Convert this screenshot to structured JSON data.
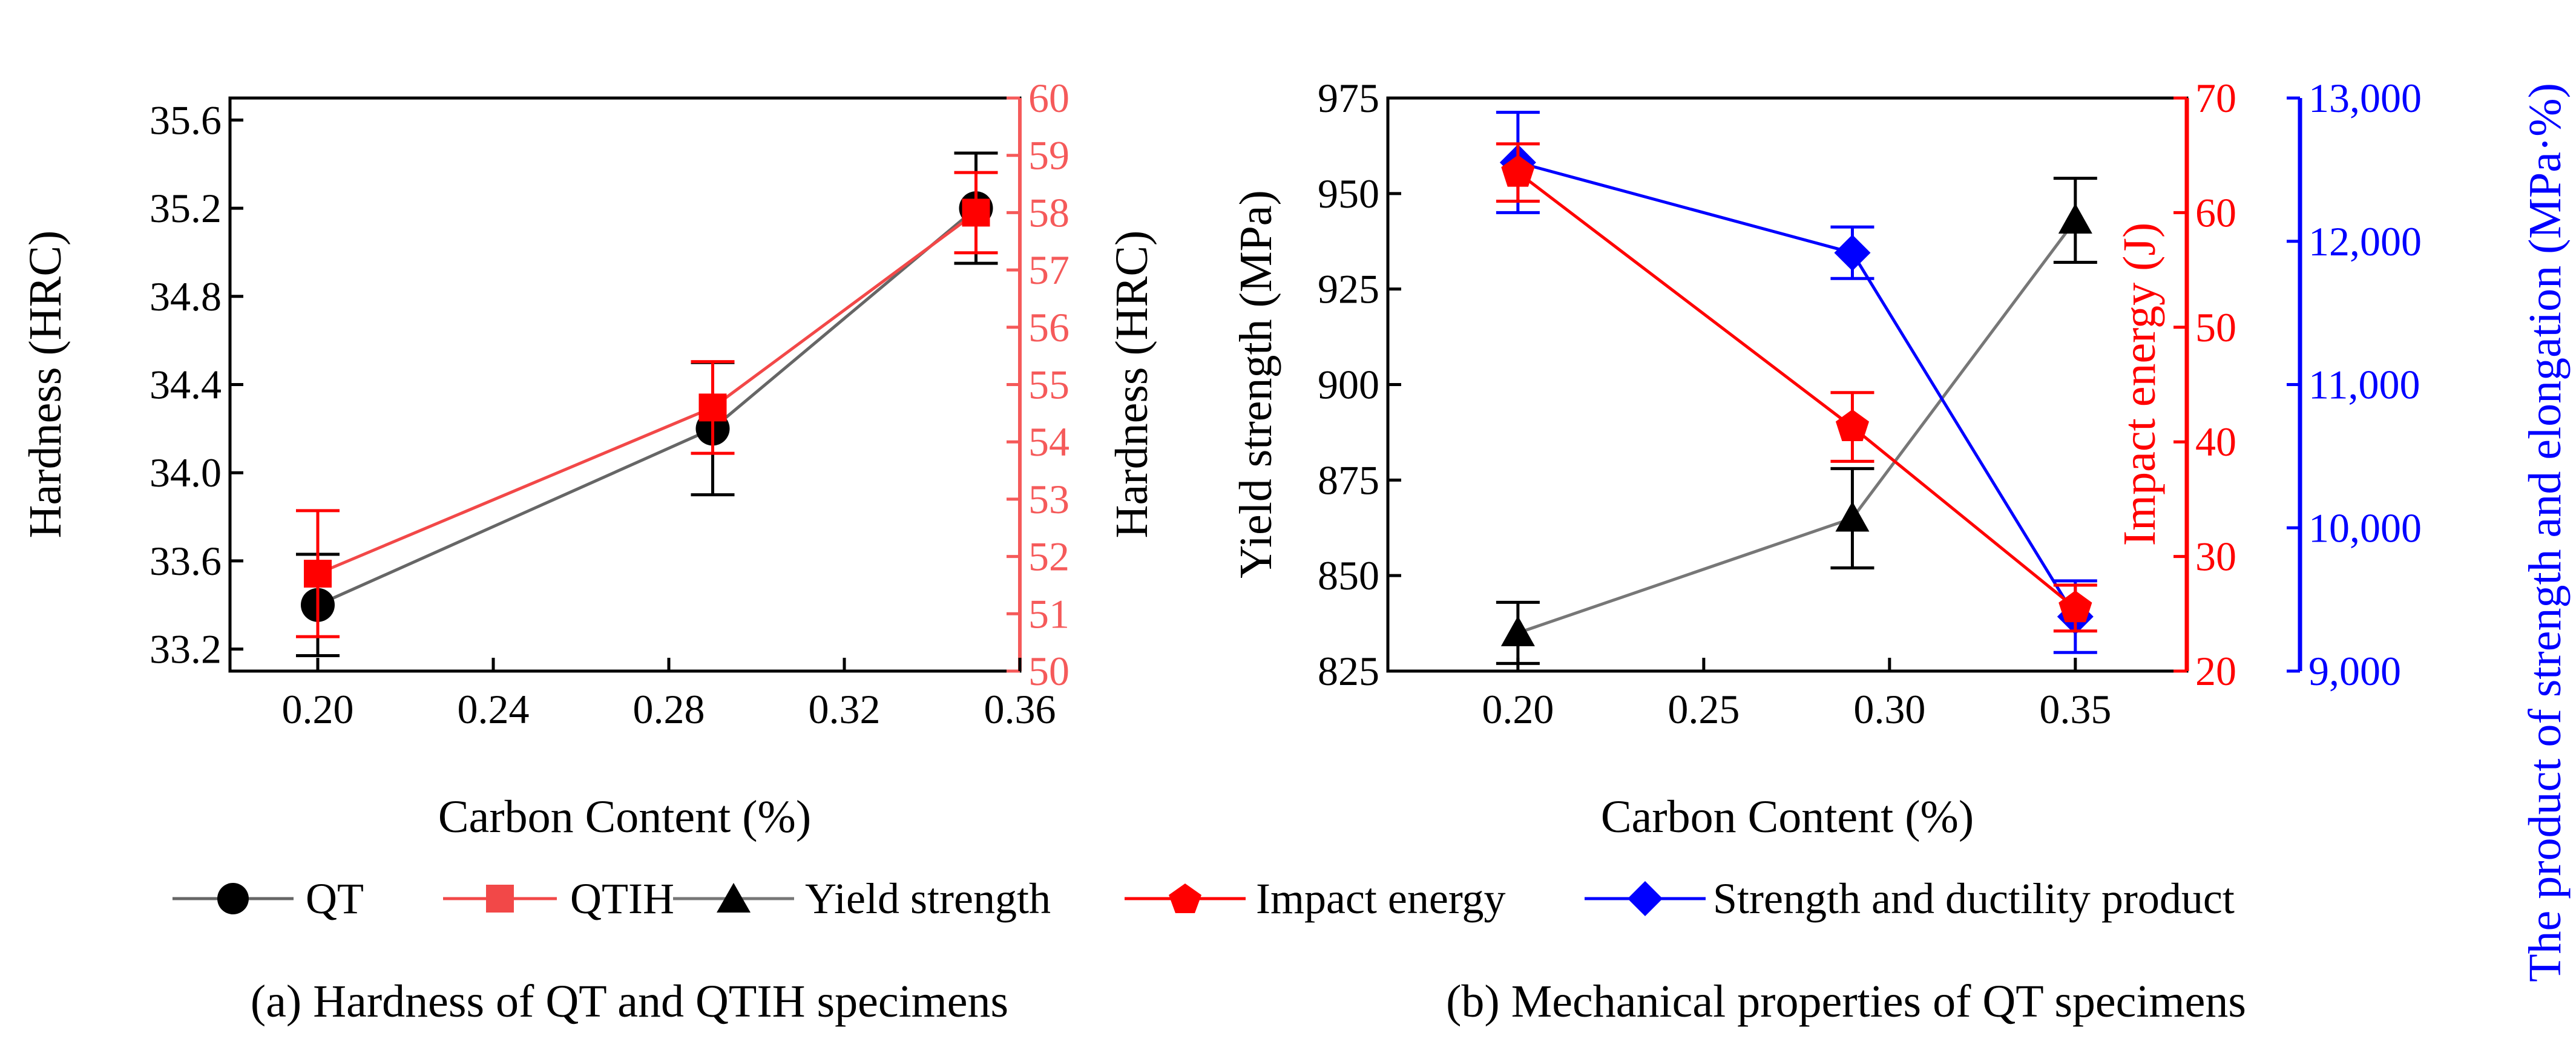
{
  "colors": {
    "black": "#000000",
    "red": "#ff0000",
    "blue": "#0000ff",
    "qt_line": "#666666",
    "qtih_line": "#f24848",
    "qtih_axis": "#f55a5a",
    "yield_line": "#777777"
  },
  "legend": {
    "qt": "QT",
    "qtih": "QTIH",
    "yield": "Yield strength",
    "impact": "Impact energy",
    "sdp": "Strength and ductility product"
  },
  "chart_data": [
    {
      "id": "hardness",
      "type": "line",
      "caption": "(a) Hardness of QT and QTIH specimens",
      "xlabel": "Carbon Content (%)",
      "xlim": [
        0.18,
        0.36
      ],
      "xticks": [
        "0.20",
        "0.24",
        "0.28",
        "0.32",
        "0.36"
      ],
      "ylabel_left": "Hardness (HRC)",
      "ylim_left": [
        33.1,
        35.7
      ],
      "yticks_left": [
        "33.2",
        "33.6",
        "34.0",
        "34.4",
        "34.8",
        "35.2",
        "35.6"
      ],
      "ylabel_right": "Hardness (HRC)",
      "ylim_right": [
        50,
        60
      ],
      "yticks_right": [
        "50",
        "51",
        "52",
        "53",
        "54",
        "55",
        "56",
        "57",
        "58",
        "59",
        "60"
      ],
      "series": [
        {
          "name": "QT",
          "axis": "left",
          "marker": "circle",
          "color": "black",
          "line": "qt_line",
          "x": [
            0.2,
            0.29,
            0.35
          ],
          "y": [
            33.4,
            34.2,
            35.2
          ],
          "err": [
            0.23,
            0.3,
            0.25
          ]
        },
        {
          "name": "QTIH",
          "axis": "right",
          "marker": "square",
          "color": "red",
          "line": "qtih_line",
          "x": [
            0.2,
            0.29,
            0.35
          ],
          "y": [
            51.7,
            54.6,
            58.0
          ],
          "err": [
            1.1,
            0.8,
            0.7
          ]
        }
      ]
    },
    {
      "id": "mechanical",
      "type": "line",
      "caption": "(b) Mechanical properties of QT specimens",
      "xlabel": "Carbon Content (%)",
      "xlim": [
        0.165,
        0.38
      ],
      "xticks": [
        "0.20",
        "0.25",
        "0.30",
        "0.35"
      ],
      "ylabel_left": "Yield strength (MPa)",
      "ylim_left": [
        825,
        975
      ],
      "yticks_left": [
        "825",
        "850",
        "875",
        "900",
        "925",
        "950",
        "975"
      ],
      "ylabel_right1": "Impact energy (J)",
      "ylim_right1": [
        20,
        70
      ],
      "yticks_right1": [
        "20",
        "30",
        "40",
        "50",
        "60",
        "70"
      ],
      "ylabel_right2": "The product of strength and elongation  (MPa·%)",
      "ylim_right2": [
        9000,
        13000
      ],
      "yticks_right2": [
        "9,000",
        "10,000",
        "11,000",
        "12,000",
        "13,000"
      ],
      "series": [
        {
          "name": "Yield strength",
          "axis": "left",
          "marker": "triangle",
          "color": "black",
          "line": "yield_line",
          "x": [
            0.2,
            0.29,
            0.35
          ],
          "y": [
            835,
            865,
            943
          ],
          "err": [
            8,
            13,
            11
          ]
        },
        {
          "name": "Impact energy",
          "axis": "right1",
          "marker": "pentagon",
          "color": "red",
          "line": "red",
          "x": [
            0.2,
            0.29,
            0.35
          ],
          "y": [
            63.5,
            41.3,
            25.5
          ],
          "err": [
            2.5,
            3.0,
            2.0
          ]
        },
        {
          "name": "Strength and ductility product",
          "axis": "right2",
          "marker": "diamond",
          "color": "blue",
          "line": "blue",
          "x": [
            0.2,
            0.29,
            0.35
          ],
          "y": [
            12550,
            11920,
            9380
          ],
          "err": [
            350,
            180,
            250
          ]
        }
      ]
    }
  ]
}
